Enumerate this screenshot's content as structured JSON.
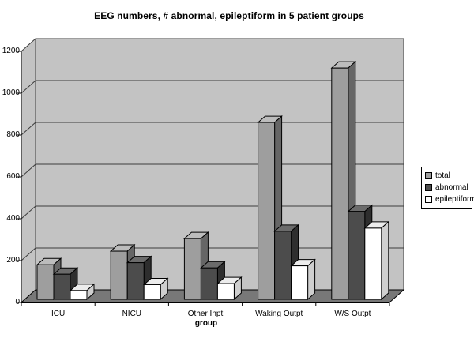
{
  "title": "EEG numbers, # abnormal, epileptiform in 5 patient groups",
  "chart_data": {
    "type": "bar",
    "projection": "3d",
    "title": "EEG numbers, # abnormal, epileptiform in 5 patient groups",
    "categories": [
      "ICU",
      "NICU",
      "Other Inpt",
      "Waking Outpt",
      "W/S Outpt"
    ],
    "series": [
      {
        "name": "total",
        "values": [
          165,
          230,
          290,
          845,
          1105
        ],
        "color": "#9e9e9e",
        "color_top": "#bcbcbc",
        "color_side": "#666666"
      },
      {
        "name": "abnormal",
        "values": [
          120,
          175,
          150,
          325,
          420
        ],
        "color": "#4c4c4c",
        "color_top": "#6b6b6b",
        "color_side": "#2e2e2e"
      },
      {
        "name": "epileptiform",
        "values": [
          42,
          70,
          75,
          160,
          340
        ],
        "color": "#ffffff",
        "color_top": "#ececec",
        "color_side": "#cfcfcf"
      }
    ],
    "xlabel": "group",
    "ylabel": "",
    "ylim": [
      0,
      1200
    ],
    "yticks": [
      0,
      200,
      400,
      600,
      800,
      1000,
      1200
    ],
    "legend": {
      "position": "right",
      "items": [
        "total",
        "abnormal",
        "epileptiform"
      ]
    },
    "grid": true,
    "colors": {
      "wall": "#c3c3c3",
      "floor": "#787878",
      "gridline": "#3c3c3c",
      "axis": "#000000",
      "background": "#ffffff"
    }
  }
}
